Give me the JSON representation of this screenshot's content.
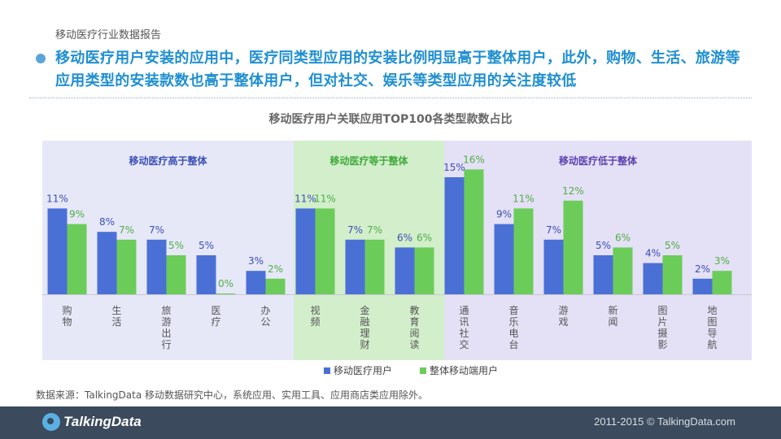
{
  "report_name": "移动医疗行业数据报告",
  "headline": "移动医疗用户安装的应用中，医疗同类型应用的安装比例明显高于整体用户，此外，购物、生活、旅游等应用类型的安装款数也高于整体用户，但对社交、娱乐等类型应用的关注度较低",
  "source": "数据来源：TalkingData 移动数据研究中心，系统应用、实用工具、应用商店类应用除外。",
  "logo": "TalkingData",
  "copyright": "2011-2015 © TalkingData.com",
  "colors": {
    "series1": "#4a70d6",
    "series2": "#6ccc5a",
    "group_higher": "#e6e8f8",
    "group_equal": "#d2eecb",
    "group_lower": "#e4e0f5"
  },
  "chart_data": {
    "type": "bar",
    "title": "移动医疗用户关联应用TOP100各类型款数占比",
    "categories": [
      "购物",
      "生活",
      "旅游出行",
      "医疗",
      "办公",
      "视频",
      "金融理财",
      "教育阅读",
      "通讯社交",
      "音乐电台",
      "游戏",
      "新闻",
      "图片摄影",
      "地图导航"
    ],
    "series": [
      {
        "name": "移动医疗用户",
        "values": [
          11,
          8,
          7,
          5,
          3,
          11,
          7,
          6,
          15,
          9,
          7,
          5,
          4,
          2
        ]
      },
      {
        "name": "整体移动端用户",
        "values": [
          9,
          7,
          5,
          0,
          2,
          11,
          7,
          6,
          16,
          11,
          12,
          6,
          5,
          3
        ]
      }
    ],
    "value_suffix": "%",
    "groups": [
      {
        "label": "移动医疗高于整体",
        "start": 0,
        "end": 4
      },
      {
        "label": "移动医疗等于整体",
        "start": 5,
        "end": 7
      },
      {
        "label": "移动医疗低于整体",
        "start": 8,
        "end": 13
      }
    ],
    "legend_position": "bottom",
    "grid": false
  }
}
